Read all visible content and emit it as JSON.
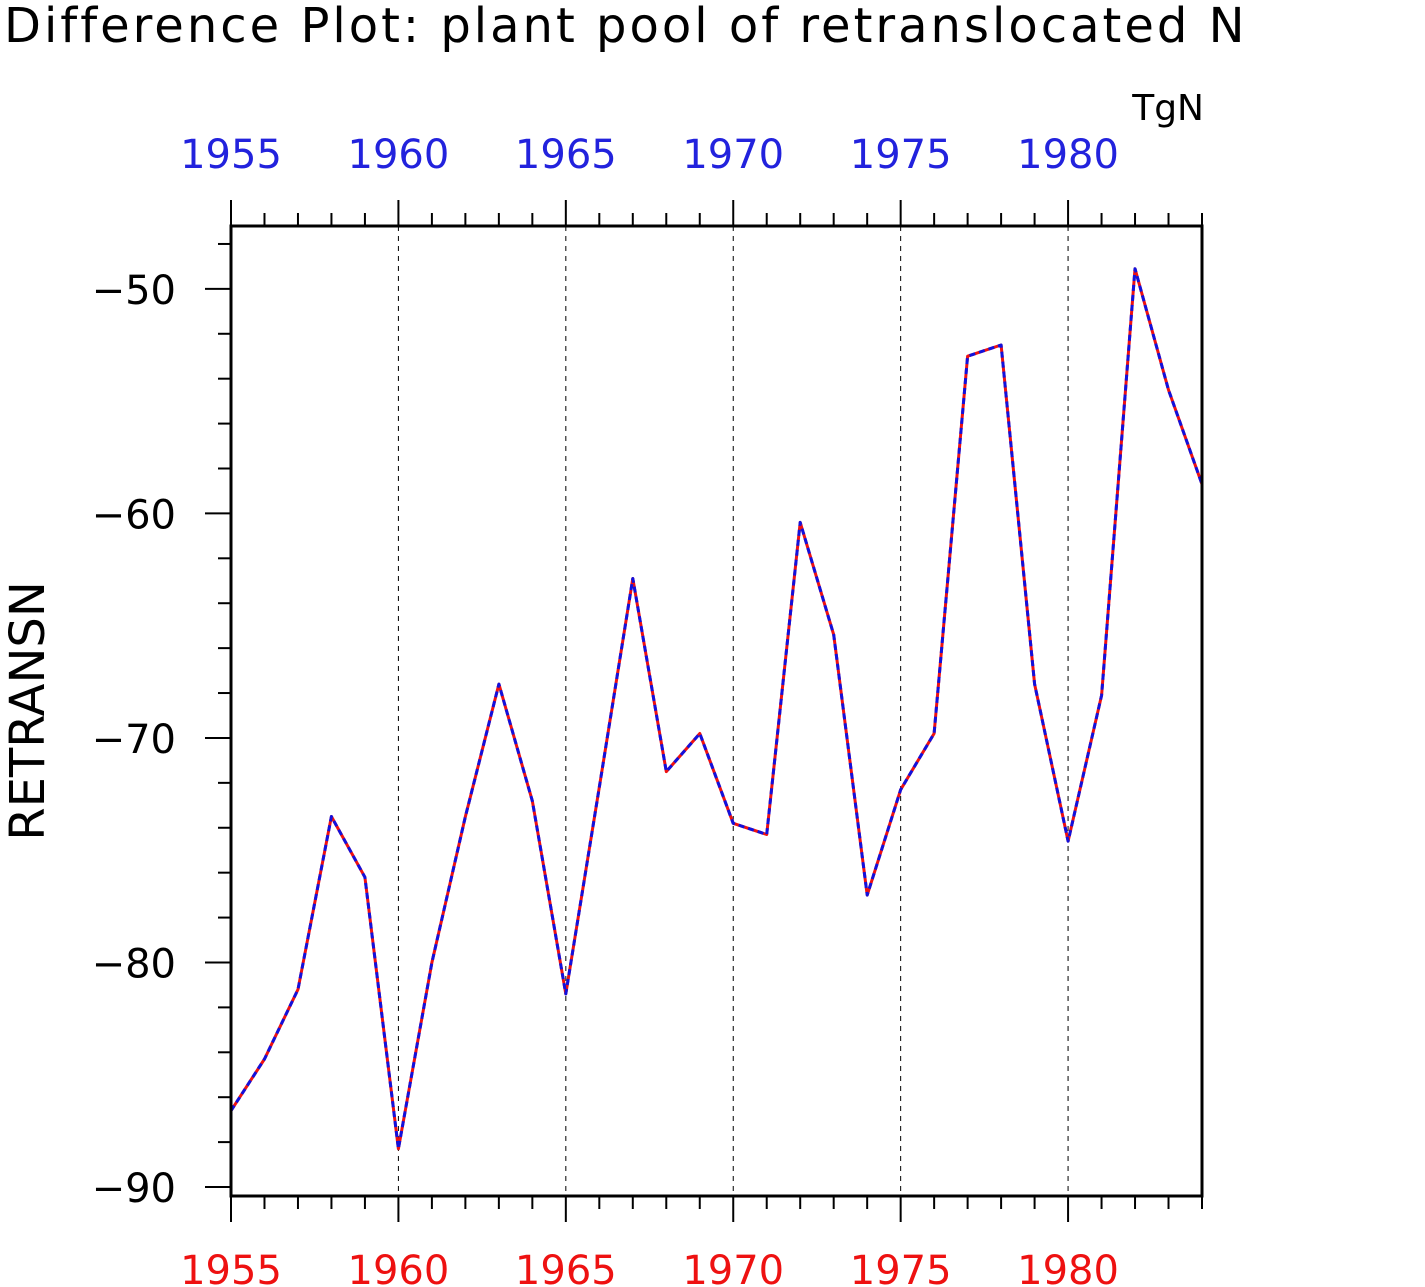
{
  "chart_data": {
    "type": "line",
    "title": "Difference Plot: plant pool of retranslocated N",
    "units": "TgN",
    "ylabel": "RETRANSN",
    "xlabel": "",
    "xlim": [
      1955,
      1984
    ],
    "ylim": [
      -90.4,
      -47.2
    ],
    "x_ticks": [
      1955,
      1960,
      1965,
      1970,
      1975,
      1980
    ],
    "y_ticks": [
      -90,
      -80,
      -70,
      -60,
      -50
    ],
    "y_tick_labels": [
      "−90",
      "−80",
      "−70",
      "−60",
      "−50"
    ],
    "grid": "vertical dashed lines at labeled x ticks",
    "colors": {
      "top_axis_labels": "#2222dd",
      "bottom_axis_labels": "#ee1111",
      "series_a": "#ee1111",
      "series_b": "#1111dd"
    },
    "x": [
      1955,
      1956,
      1957,
      1958,
      1959,
      1960,
      1961,
      1962,
      1963,
      1964,
      1965,
      1966,
      1967,
      1968,
      1969,
      1970,
      1971,
      1972,
      1973,
      1974,
      1975,
      1976,
      1977,
      1978,
      1979,
      1980,
      1981,
      1982,
      1983,
      1984
    ],
    "series": [
      {
        "style": "solid",
        "values": [
          -86.6,
          -84.3,
          -81.2,
          -73.5,
          -76.2,
          -88.3,
          -80.0,
          -73.5,
          -67.6,
          -72.8,
          -81.4,
          -72.2,
          -62.9,
          -71.5,
          -69.8,
          -73.8,
          -74.3,
          -60.4,
          -65.4,
          -77.0,
          -72.3,
          -69.8,
          -53.0,
          -52.5,
          -67.6,
          -74.6,
          -68.1,
          -49.1,
          -54.5,
          -58.7
        ]
      },
      {
        "style": "dashed",
        "values": [
          -86.6,
          -84.3,
          -81.2,
          -73.5,
          -76.2,
          -88.3,
          -80.0,
          -73.5,
          -67.6,
          -72.8,
          -81.4,
          -72.2,
          -62.9,
          -71.5,
          -69.8,
          -73.8,
          -74.3,
          -60.4,
          -65.4,
          -77.0,
          -72.3,
          -69.8,
          -53.0,
          -52.5,
          -67.6,
          -74.6,
          -68.1,
          -49.1,
          -54.5,
          -58.7
        ]
      }
    ]
  }
}
